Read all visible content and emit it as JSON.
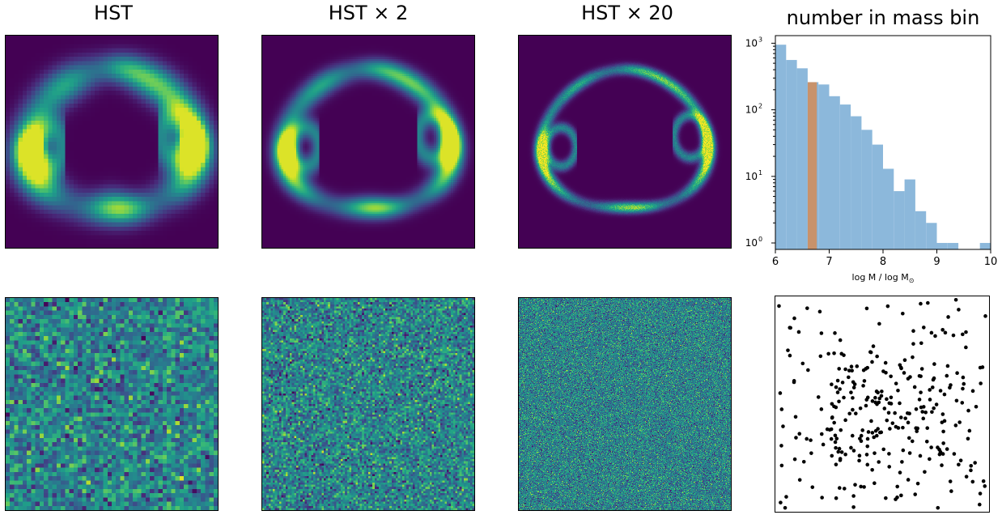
{
  "titles": {
    "t1": "HST",
    "t2": "HST × 2",
    "t3": "HST × 20",
    "t4": "number in mass bin"
  },
  "colors": {
    "image_background": "#440154",
    "hist_bar": "#8cb8db",
    "hist_highlight": "#c8926b",
    "scatter_point": "#000000"
  },
  "chart_data": [
    {
      "type": "heatmap",
      "description": "lensed ring image",
      "resolution": 50,
      "sharpness": 0.11,
      "colormap": "viridis"
    },
    {
      "type": "heatmap",
      "description": "lensed ring image",
      "resolution": 100,
      "sharpness": 0.07,
      "colormap": "viridis"
    },
    {
      "type": "heatmap",
      "description": "lensed ring image",
      "resolution": 262,
      "sharpness": 0.035,
      "colormap": "viridis"
    },
    {
      "type": "bar",
      "title": "number in mass bin",
      "xlabel": "log M / log M",
      "xlabel_sub": "⊙",
      "yscale": "log",
      "xlim": [
        6,
        10
      ],
      "ylim": [
        0.8,
        1300
      ],
      "x_ticks": [
        "6",
        "7",
        "8",
        "9",
        "10"
      ],
      "y_ticks": [
        {
          "base": "10",
          "exp": "0",
          "value": 1
        },
        {
          "base": "10",
          "exp": "1",
          "value": 10
        },
        {
          "base": "10",
          "exp": "2",
          "value": 100
        },
        {
          "base": "10",
          "exp": "3",
          "value": 1000
        }
      ],
      "bin_edges": [
        6.0,
        6.2,
        6.4,
        6.6,
        6.8,
        7.0,
        7.2,
        7.4,
        7.6,
        7.8,
        8.0,
        8.2,
        8.4,
        8.6,
        8.8,
        9.0,
        9.2,
        9.4,
        9.6,
        9.8,
        10.0
      ],
      "counts": [
        950,
        560,
        420,
        260,
        240,
        160,
        120,
        80,
        50,
        30,
        13,
        6,
        9,
        3,
        2,
        1,
        1,
        0,
        0,
        1
      ],
      "highlight": {
        "x0": 6.6,
        "x1": 6.77,
        "value": 260
      }
    },
    {
      "type": "heatmap",
      "description": "noise residual",
      "resolution": 50,
      "colormap": "viridis"
    },
    {
      "type": "heatmap",
      "description": "noise residual",
      "resolution": 100,
      "colormap": "viridis"
    },
    {
      "type": "heatmap",
      "description": "noise residual",
      "resolution": 262,
      "colormap": "viridis"
    },
    {
      "type": "scatter",
      "description": "subhalo positions",
      "count": 300,
      "xlim": [
        0,
        1
      ],
      "ylim": [
        0,
        1
      ]
    }
  ]
}
